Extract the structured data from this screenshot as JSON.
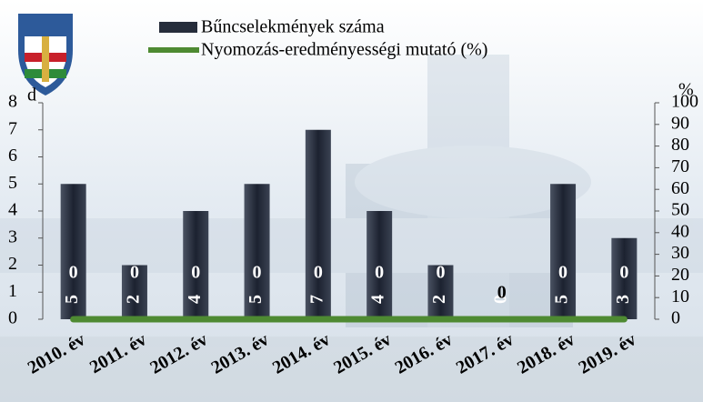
{
  "chart_data": {
    "type": "bar",
    "categories": [
      "2010. év",
      "2011. év",
      "2012. év",
      "2013. év",
      "2014. év",
      "2015. év",
      "2016. év",
      "2017. év",
      "2018. év",
      "2019. év"
    ],
    "series": [
      {
        "name": "Bűncselekmények száma",
        "color": "#262d3b",
        "type": "bar",
        "values": [
          5,
          2,
          4,
          5,
          7,
          4,
          2,
          0,
          5,
          3
        ]
      },
      {
        "name": "Nyomozás-eredményességi mutató (%)",
        "color": "#4e8a32",
        "type": "line",
        "axis": "y2",
        "values": [
          0,
          0,
          0,
          0,
          0,
          0,
          0,
          0,
          0,
          0
        ]
      }
    ],
    "y_label": "d",
    "y2_label": "%",
    "ylim": [
      0,
      8
    ],
    "yticks": [
      0,
      1,
      2,
      3,
      4,
      5,
      6,
      7,
      8
    ],
    "y2lim": [
      0,
      100
    ],
    "y2ticks": [
      0,
      10,
      20,
      30,
      40,
      50,
      60,
      70,
      80,
      90,
      100
    ]
  }
}
